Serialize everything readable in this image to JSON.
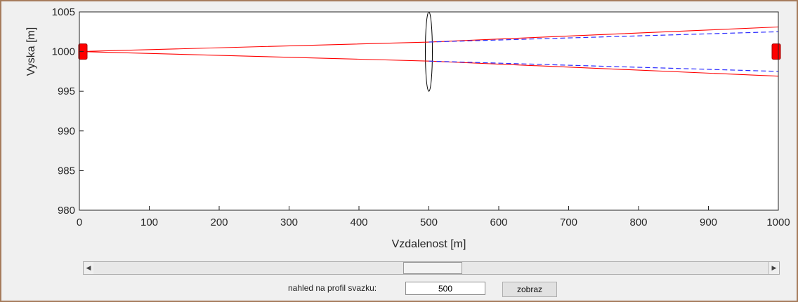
{
  "chart_data": {
    "type": "line",
    "xlabel": "Vzdalenost [m]",
    "ylabel": "Vyska [m]",
    "xlim": [
      0,
      1000
    ],
    "ylim": [
      980,
      1005
    ],
    "xticks": [
      0,
      100,
      200,
      300,
      400,
      500,
      600,
      700,
      800,
      900,
      1000
    ],
    "yticks": [
      980,
      985,
      990,
      995,
      1000,
      1005
    ],
    "grid": false,
    "colors": {
      "rays": "#ff0000",
      "dashed": "#2b2bff",
      "lens": "#000000",
      "markers": "#ff0000"
    },
    "series": [
      {
        "style": "red-solid",
        "x": [
          0,
          500,
          1000
        ],
        "y": [
          1000,
          1001.2,
          1003.1
        ]
      },
      {
        "style": "red-solid",
        "x": [
          0,
          500,
          1000
        ],
        "y": [
          1000,
          998.8,
          996.9
        ]
      },
      {
        "style": "blue-dashed",
        "x": [
          500,
          1000
        ],
        "y": [
          1001.2,
          1002.5
        ]
      },
      {
        "style": "blue-dashed",
        "x": [
          500,
          1000
        ],
        "y": [
          998.8,
          997.5
        ]
      }
    ],
    "lens": {
      "x": 500,
      "y_center": 1000,
      "half_height": 5
    },
    "markers": [
      {
        "name": "source",
        "x": 5,
        "y": 1000
      },
      {
        "name": "target",
        "x": 997,
        "y": 1000
      }
    ]
  },
  "slider": {
    "value": 500,
    "min": 0,
    "max": 1000
  },
  "controls": {
    "label": "nahled na profil svazku:",
    "input_value": "500",
    "button_label": "zobraz"
  },
  "icons": {
    "left_arrow": "◀",
    "right_arrow": "▶"
  }
}
